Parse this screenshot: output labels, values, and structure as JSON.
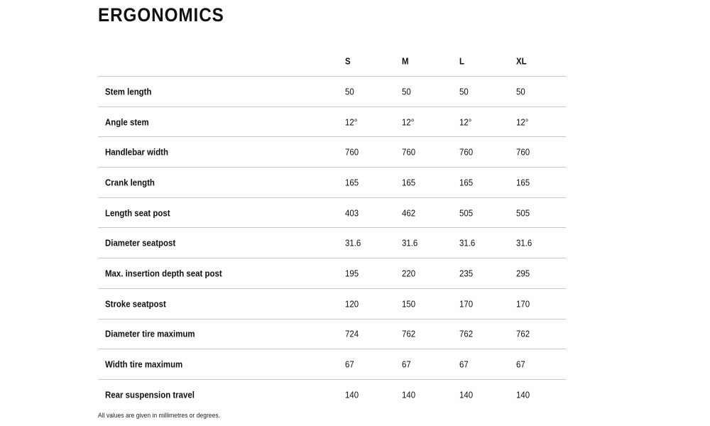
{
  "title": "ERGONOMICS",
  "columns": [
    "S",
    "M",
    "L",
    "XL"
  ],
  "rows": [
    {
      "label": "Stem length",
      "values": [
        "50",
        "50",
        "50",
        "50"
      ]
    },
    {
      "label": "Angle stem",
      "values": [
        "12°",
        "12°",
        "12°",
        "12°"
      ]
    },
    {
      "label": "Handlebar width",
      "values": [
        "760",
        "760",
        "760",
        "760"
      ]
    },
    {
      "label": "Crank length",
      "values": [
        "165",
        "165",
        "165",
        "165"
      ]
    },
    {
      "label": "Length seat post",
      "values": [
        "403",
        "462",
        "505",
        "505"
      ]
    },
    {
      "label": "Diameter seatpost",
      "values": [
        "31.6",
        "31.6",
        "31.6",
        "31.6"
      ]
    },
    {
      "label": "Max. insertion depth seat post",
      "values": [
        "195",
        "220",
        "235",
        "295"
      ]
    },
    {
      "label": "Stroke seatpost",
      "values": [
        "120",
        "150",
        "170",
        "170"
      ]
    },
    {
      "label": "Diameter tire maximum",
      "values": [
        "724",
        "762",
        "762",
        "762"
      ]
    },
    {
      "label": "Width tire maximum",
      "values": [
        "67",
        "67",
        "67",
        "67"
      ]
    },
    {
      "label": "Rear suspension travel",
      "values": [
        "140",
        "140",
        "140",
        "140"
      ]
    }
  ],
  "footnote": "All values are given in millimetres or degrees."
}
